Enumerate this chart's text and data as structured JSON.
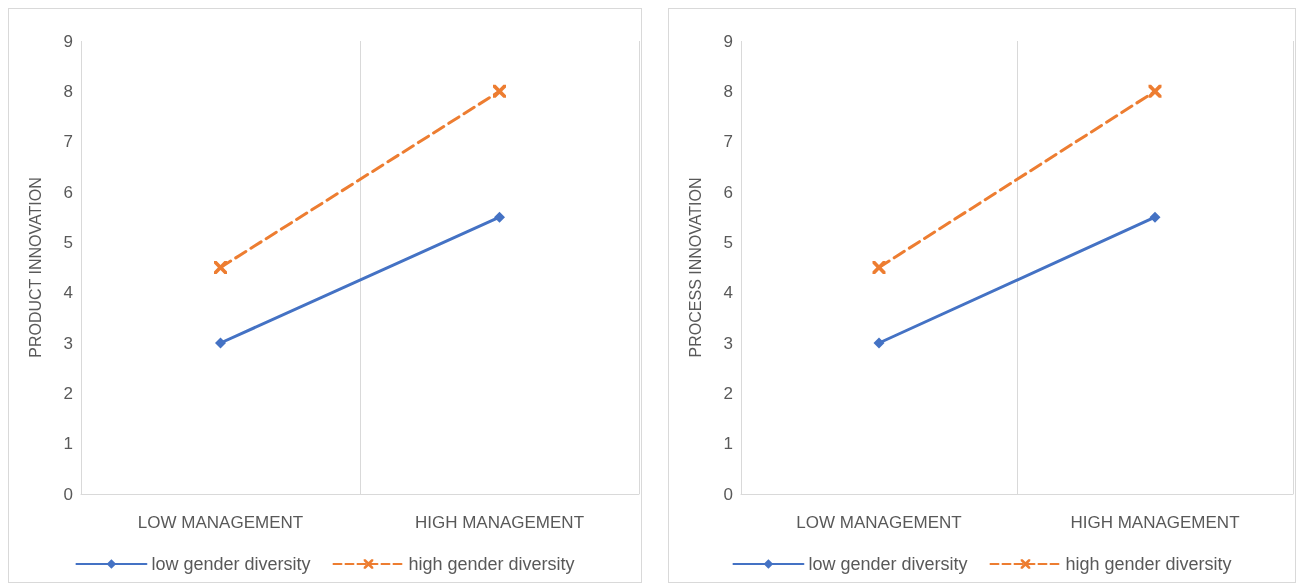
{
  "chart_data": [
    {
      "type": "line",
      "ylabel": "PRODUCT INNOVATION",
      "categories": [
        "LOW MANAGEMENT",
        "HIGH MANAGEMENT"
      ],
      "series": [
        {
          "name": "low gender diversity",
          "color": "#4472c4",
          "values": [
            3,
            5.5
          ],
          "marker": "diamond",
          "line_style": "solid"
        },
        {
          "name": "high gender diversity",
          "color": "#ed7d31",
          "values": [
            4.5,
            8
          ],
          "marker": "cross",
          "line_style": "dashed"
        }
      ],
      "ylim": [
        0,
        9
      ],
      "yticks": [
        0,
        1,
        2,
        3,
        4,
        5,
        6,
        7,
        8,
        9
      ],
      "grid": "x",
      "legend": "bottom"
    },
    {
      "type": "line",
      "ylabel": "PROCESS INNOVATION",
      "categories": [
        "LOW MANAGEMENT",
        "HIGH MANAGEMENT"
      ],
      "series": [
        {
          "name": "low gender diversity",
          "color": "#4472c4",
          "values": [
            3,
            5.5
          ],
          "marker": "diamond",
          "line_style": "solid"
        },
        {
          "name": "high gender diversity",
          "color": "#ed7d31",
          "values": [
            4.5,
            8
          ],
          "marker": "cross",
          "line_style": "dashed"
        }
      ],
      "ylim": [
        0,
        9
      ],
      "yticks": [
        0,
        1,
        2,
        3,
        4,
        5,
        6,
        7,
        8,
        9
      ],
      "grid": "x",
      "legend": "bottom"
    }
  ]
}
